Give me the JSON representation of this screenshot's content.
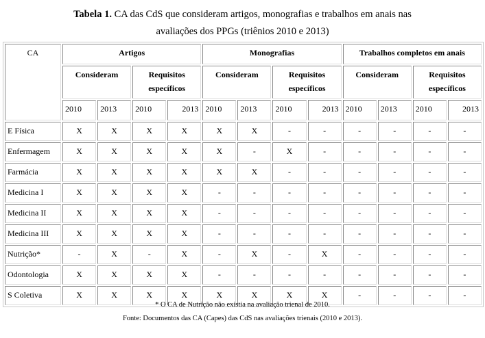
{
  "title": {
    "bold": "Tabela 1.",
    "line1": " CA das CdS que consideram artigos, monografias e trabalhos em anais nas",
    "line2": "avaliações dos PPGs (triênios 2010 e 2013)"
  },
  "table": {
    "ca_header": "CA",
    "groups": [
      "Artigos",
      "Monografias",
      "Trabalhos completos em anais"
    ],
    "subgroups": [
      "Consideram",
      "Requisitos específicos"
    ],
    "years": [
      "2010",
      "2013"
    ],
    "rows": [
      {
        "label": "E Física",
        "values": [
          "X",
          "X",
          "X",
          "X",
          "X",
          "X",
          "-",
          "-",
          "-",
          "-",
          "-",
          "-"
        ]
      },
      {
        "label": "Enfermagem",
        "values": [
          "X",
          "X",
          "X",
          "X",
          "X",
          "-",
          "X",
          "-",
          "-",
          "-",
          "-",
          "-"
        ]
      },
      {
        "label": "Farmácia",
        "values": [
          "X",
          "X",
          "X",
          "X",
          "X",
          "X",
          "-",
          "-",
          "-",
          "-",
          "-",
          "-"
        ]
      },
      {
        "label": "Medicina I",
        "values": [
          "X",
          "X",
          "X",
          "X",
          "-",
          "-",
          "-",
          "-",
          "-",
          "-",
          "-",
          "-"
        ]
      },
      {
        "label": "Medicina II",
        "values": [
          "X",
          "X",
          "X",
          "X",
          "-",
          "-",
          "-",
          "-",
          "-",
          "-",
          "-",
          "-"
        ]
      },
      {
        "label": "Medicina III",
        "values": [
          "X",
          "X",
          "X",
          "X",
          "-",
          "-",
          "-",
          "-",
          "-",
          "-",
          "-",
          "-"
        ]
      },
      {
        "label": "Nutrição*",
        "values": [
          "-",
          "X",
          "-",
          "X",
          "-",
          "X",
          "-",
          "X",
          "-",
          "-",
          "-",
          "-"
        ]
      },
      {
        "label": "Odontologia",
        "values": [
          "X",
          "X",
          "X",
          "X",
          "-",
          "-",
          "-",
          "-",
          "-",
          "-",
          "-",
          "-"
        ]
      },
      {
        "label": "S Coletiva",
        "values": [
          "X",
          "X",
          "X",
          "X",
          "X",
          "X",
          "X",
          "X",
          "-",
          "-",
          "-",
          "-"
        ]
      }
    ]
  },
  "footnote": "* O CA de Nutrição não existia na avaliação trienal de 2010.",
  "source": "Fonte: Documentos das CA (Capes) das CdS nas avaliações trienais (2010 e 2013)."
}
